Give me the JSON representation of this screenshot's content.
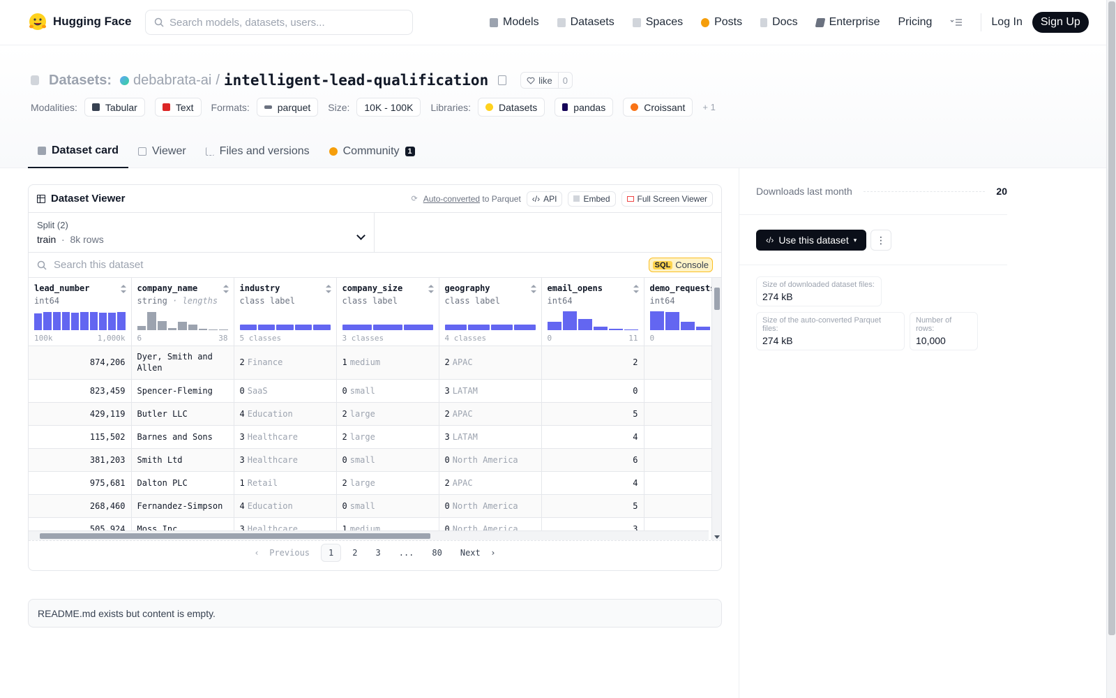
{
  "nav": {
    "brand": "Hugging Face",
    "search_placeholder": "Search models, datasets, users...",
    "links": [
      {
        "label": "Models",
        "icon": "cube-icon",
        "color": "#9ca3af"
      },
      {
        "label": "Datasets",
        "icon": "database-icon",
        "color": "#9ca3af"
      },
      {
        "label": "Spaces",
        "icon": "grid-icon",
        "color": "#9ca3af"
      },
      {
        "label": "Posts",
        "icon": "posts-icon",
        "color": "#f59e0b"
      },
      {
        "label": "Docs",
        "icon": "docs-icon",
        "color": "#9ca3af"
      },
      {
        "label": "Enterprise",
        "icon": "enterprise-icon",
        "color": "#6b7280"
      },
      {
        "label": "Pricing"
      }
    ],
    "login": "Log In",
    "signup": "Sign Up"
  },
  "header": {
    "section": "Datasets:",
    "owner": "debabrata-ai",
    "separator": "/",
    "repo": "intelligent-lead-qualification",
    "like_label": "like",
    "like_count": "0",
    "modalities_label": "Modalities:",
    "modalities": [
      "Tabular",
      "Text"
    ],
    "formats_label": "Formats:",
    "formats": [
      "parquet"
    ],
    "size_label": "Size:",
    "size": "10K - 100K",
    "libraries_label": "Libraries:",
    "libraries": [
      "Datasets",
      "pandas",
      "Croissant"
    ],
    "libraries_more": "+ 1",
    "tabs": [
      "Dataset card",
      "Viewer",
      "Files and versions",
      "Community"
    ],
    "community_badge": "1"
  },
  "viewer": {
    "title": "Dataset Viewer",
    "auto_converted": "Auto-converted",
    "to_parquet": "to Parquet",
    "api": "API",
    "embed": "Embed",
    "fullscreen": "Full Screen Viewer",
    "split_label": "Split (2)",
    "split_name": "train",
    "split_rows": "8k rows",
    "search_placeholder": "Search this dataset",
    "sql_tag": "SQL",
    "sql_console": "Console",
    "columns": [
      {
        "name": "lead_number",
        "type": "int64",
        "range_min": "100k",
        "range_max": "1,000k",
        "hist": [
          0.85,
          0.9,
          0.92,
          0.9,
          0.88,
          0.92,
          0.9,
          0.86,
          0.88,
          0.9
        ]
      },
      {
        "name": "company_name",
        "type": "string",
        "type_note": "· lengths",
        "range_min": "6",
        "range_max": "38",
        "hist": [
          0.2,
          0.9,
          0.45,
          0.1,
          0.4,
          0.28,
          0.05,
          0.03,
          0.03
        ],
        "muted": true
      },
      {
        "name": "industry",
        "type": "class label",
        "range_min": "5 classes",
        "range_max": "",
        "classes": 5
      },
      {
        "name": "company_size",
        "type": "class label",
        "range_min": "3 classes",
        "range_max": "",
        "classes": 3
      },
      {
        "name": "geography",
        "type": "class label",
        "range_min": "4 classes",
        "range_max": "",
        "classes": 4
      },
      {
        "name": "email_opens",
        "type": "int64",
        "range_min": "0",
        "range_max": "11",
        "hist": [
          0.4,
          0.95,
          0.55,
          0.15,
          0.05,
          0.03
        ]
      },
      {
        "name": "demo_requests",
        "type": "int64",
        "range_min": "0",
        "range_max": "",
        "hist": [
          0.95,
          0.9,
          0.4,
          0.15,
          0.05,
          0.03
        ]
      }
    ],
    "rows": [
      {
        "lead_number": "874,206",
        "company_name": "Dyer, Smith and Allen",
        "industry_id": "2",
        "industry": "Finance",
        "size_id": "1",
        "size": "medium",
        "geo_id": "2",
        "geo": "APAC",
        "email_opens": "2"
      },
      {
        "lead_number": "823,459",
        "company_name": "Spencer-Fleming",
        "industry_id": "0",
        "industry": "SaaS",
        "size_id": "0",
        "size": "small",
        "geo_id": "3",
        "geo": "LATAM",
        "email_opens": "0"
      },
      {
        "lead_number": "429,119",
        "company_name": "Butler LLC",
        "industry_id": "4",
        "industry": "Education",
        "size_id": "2",
        "size": "large",
        "geo_id": "2",
        "geo": "APAC",
        "email_opens": "5"
      },
      {
        "lead_number": "115,502",
        "company_name": "Barnes and Sons",
        "industry_id": "3",
        "industry": "Healthcare",
        "size_id": "2",
        "size": "large",
        "geo_id": "3",
        "geo": "LATAM",
        "email_opens": "4"
      },
      {
        "lead_number": "381,203",
        "company_name": "Smith Ltd",
        "industry_id": "3",
        "industry": "Healthcare",
        "size_id": "0",
        "size": "small",
        "geo_id": "0",
        "geo": "North America",
        "email_opens": "6"
      },
      {
        "lead_number": "975,681",
        "company_name": "Dalton PLC",
        "industry_id": "1",
        "industry": "Retail",
        "size_id": "2",
        "size": "large",
        "geo_id": "2",
        "geo": "APAC",
        "email_opens": "4"
      },
      {
        "lead_number": "268,460",
        "company_name": "Fernandez-Simpson",
        "industry_id": "4",
        "industry": "Education",
        "size_id": "0",
        "size": "small",
        "geo_id": "0",
        "geo": "North America",
        "email_opens": "5"
      },
      {
        "lead_number": "505,924",
        "company_name": "Moss Inc",
        "industry_id": "3",
        "industry": "Healthcare",
        "size_id": "1",
        "size": "medium",
        "geo_id": "0",
        "geo": "North America",
        "email_opens": "3"
      }
    ],
    "pager": {
      "previous": "Previous",
      "pages": [
        "1",
        "2",
        "3",
        "...",
        "80"
      ],
      "current": "1",
      "next": "Next"
    }
  },
  "readme": "README.md exists but content is empty.",
  "sidebar": {
    "downloads_label": "Downloads last month",
    "downloads_value": "20",
    "use_dataset": "Use this dataset",
    "downloaded_size_label": "Size of downloaded dataset files:",
    "downloaded_size": "274 kB",
    "parquet_size_label": "Size of the auto-converted Parquet files:",
    "parquet_size": "274 kB",
    "rows_label": "Number of rows:",
    "rows_value": "10,000"
  },
  "colors": {
    "accent": "#6366f1",
    "dark": "#0b0f19"
  }
}
